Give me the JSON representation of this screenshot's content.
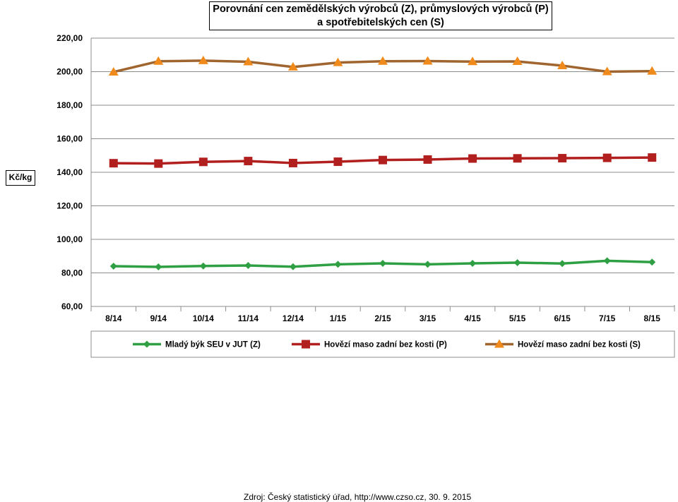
{
  "chart_data": {
    "type": "line",
    "title_line1": "Porovnání cen zemědělských výrobců (Z), průmyslových výrobců (P)",
    "title_line2": "a spotřebitelských cen (S)",
    "ylabel": "Kč/kg",
    "xlabel": "",
    "ylim": [
      60,
      220
    ],
    "yticks": [
      60,
      80,
      100,
      120,
      140,
      160,
      180,
      200,
      220
    ],
    "ytick_labels": [
      "60,00",
      "80,00",
      "100,00",
      "120,00",
      "140,00",
      "160,00",
      "180,00",
      "200,00",
      "220,00"
    ],
    "categories": [
      "8/14",
      "9/14",
      "10/14",
      "11/14",
      "12/14",
      "1/15",
      "2/15",
      "3/15",
      "4/15",
      "5/15",
      "6/15",
      "7/15",
      "8/15"
    ],
    "grid": true,
    "legend_position": "bottom",
    "series": [
      {
        "name": "Mladý býk SEU v JUT (Z)",
        "color": "#2ea043",
        "marker": "diamond",
        "values": [
          84.0,
          83.6,
          84.1,
          84.4,
          83.7,
          85.1,
          85.7,
          85.1,
          85.7,
          86.1,
          85.6,
          87.2,
          86.4
        ]
      },
      {
        "name": "Hovězí maso zadní bez kosti (P)",
        "color": "#b21f1f",
        "marker": "square",
        "values": [
          145.4,
          145.2,
          146.2,
          146.7,
          145.5,
          146.3,
          147.3,
          147.6,
          148.2,
          148.3,
          148.4,
          148.6,
          148.8
        ]
      },
      {
        "name": "Hovězí maso zadní bez kosti (S)",
        "color": "#a0652e",
        "marker_color": "#f08a1a",
        "marker": "triangle",
        "values": [
          199.8,
          206.2,
          206.6,
          205.9,
          202.8,
          205.4,
          206.2,
          206.3,
          206.0,
          206.1,
          203.6,
          200.0,
          200.3
        ]
      }
    ]
  },
  "source": "Zdroj: Český statistický úřad, http://www.czso.cz, 30. 9. 2015"
}
